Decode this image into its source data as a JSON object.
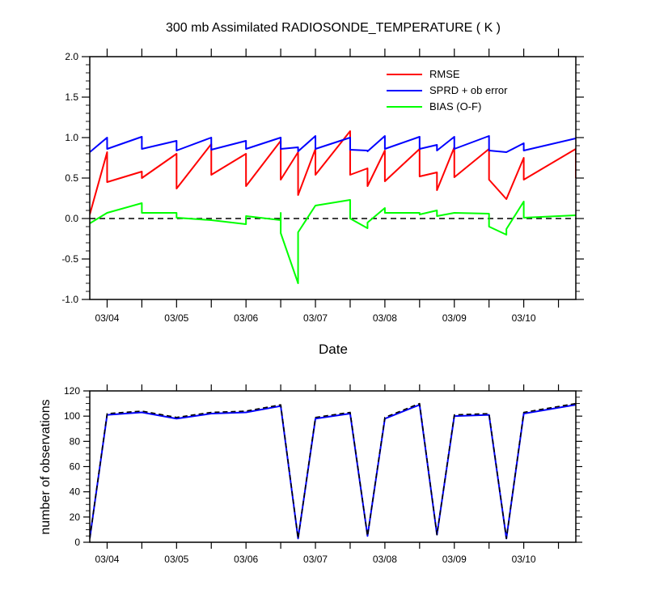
{
  "chart_data": [
    {
      "type": "line",
      "title": "300 mb Assimilated RADIOSONDE_TEMPERATURE ( K )",
      "xlabel": "Date",
      "ylabel": "",
      "xlim": [
        "03/03 18Z",
        "03/10 18Z"
      ],
      "ylim": [
        -1.0,
        2.0
      ],
      "x_tick_labels": [
        "03/04",
        "03/05",
        "03/06",
        "03/07",
        "03/08",
        "03/09",
        "03/10"
      ],
      "y_tick_labels": [
        "-1.0",
        "-0.5",
        "0.0",
        "0.5",
        "1.0",
        "1.5",
        "2.0"
      ],
      "y_ticks": [
        -1.0,
        -0.5,
        0.0,
        0.5,
        1.0,
        1.5,
        2.0
      ],
      "legend_position": "top-right",
      "reference_line": {
        "y": 0.0,
        "style": "dashed"
      },
      "series": [
        {
          "name": "RMSE",
          "color": "#ff0000",
          "points": [
            [
              "03/03 18Z",
              0.05
            ],
            [
              "03/04 00Z",
              0.82
            ],
            [
              "03/04 00Z",
              0.45
            ],
            [
              "03/04 12Z",
              0.58
            ],
            [
              "03/04 12Z",
              0.5
            ],
            [
              "03/05 00Z",
              0.8
            ],
            [
              "03/05 00Z",
              0.37
            ],
            [
              "03/05 12Z",
              0.92
            ],
            [
              "03/05 12Z",
              0.54
            ],
            [
              "03/06 00Z",
              0.8
            ],
            [
              "03/06 00Z",
              0.4
            ],
            [
              "03/06 12Z",
              0.96
            ],
            [
              "03/06 12Z",
              0.48
            ],
            [
              "03/06 18Z",
              0.82
            ],
            [
              "03/06 18Z",
              0.29
            ],
            [
              "03/07 00Z",
              0.86
            ],
            [
              "03/07 00Z",
              0.54
            ],
            [
              "03/07 12Z",
              1.08
            ],
            [
              "03/07 12Z",
              0.54
            ],
            [
              "03/07 18Z",
              0.62
            ],
            [
              "03/07 18Z",
              0.4
            ],
            [
              "03/08 00Z",
              0.84
            ],
            [
              "03/08 00Z",
              0.46
            ],
            [
              "03/08 12Z",
              0.86
            ],
            [
              "03/08 12Z",
              0.52
            ],
            [
              "03/08 18Z",
              0.57
            ],
            [
              "03/08 18Z",
              0.35
            ],
            [
              "03/09 00Z",
              0.88
            ],
            [
              "03/09 00Z",
              0.51
            ],
            [
              "03/09 12Z",
              0.86
            ],
            [
              "03/09 12Z",
              0.48
            ],
            [
              "03/09 18Z",
              0.24
            ],
            [
              "03/10 00Z",
              0.75
            ],
            [
              "03/10 00Z",
              0.48
            ],
            [
              "03/10 18Z",
              0.86
            ],
            [
              "03/10 18Z",
              0.5
            ]
          ]
        },
        {
          "name": "SPRD + ob error",
          "color": "#0000ff",
          "points": [
            [
              "03/03 18Z",
              0.82
            ],
            [
              "03/04 00Z",
              1.0
            ],
            [
              "03/04 00Z",
              0.86
            ],
            [
              "03/04 12Z",
              1.01
            ],
            [
              "03/04 12Z",
              0.86
            ],
            [
              "03/05 00Z",
              0.96
            ],
            [
              "03/05 00Z",
              0.84
            ],
            [
              "03/05 12Z",
              1.0
            ],
            [
              "03/05 12Z",
              0.85
            ],
            [
              "03/06 00Z",
              0.96
            ],
            [
              "03/06 00Z",
              0.86
            ],
            [
              "03/06 12Z",
              1.0
            ],
            [
              "03/06 12Z",
              0.86
            ],
            [
              "03/06 18Z",
              0.88
            ],
            [
              "03/06 18Z",
              0.83
            ],
            [
              "03/07 00Z",
              1.02
            ],
            [
              "03/07 00Z",
              0.86
            ],
            [
              "03/07 12Z",
              1.0
            ],
            [
              "03/07 12Z",
              0.85
            ],
            [
              "03/07 18Z",
              0.84
            ],
            [
              "03/07 18Z",
              0.83
            ],
            [
              "03/08 00Z",
              1.02
            ],
            [
              "03/08 00Z",
              0.86
            ],
            [
              "03/08 12Z",
              1.01
            ],
            [
              "03/08 12Z",
              0.86
            ],
            [
              "03/08 18Z",
              0.91
            ],
            [
              "03/08 18Z",
              0.84
            ],
            [
              "03/09 00Z",
              1.01
            ],
            [
              "03/09 00Z",
              0.86
            ],
            [
              "03/09 12Z",
              1.02
            ],
            [
              "03/09 12Z",
              0.84
            ],
            [
              "03/09 18Z",
              0.82
            ],
            [
              "03/10 00Z",
              0.93
            ],
            [
              "03/10 00Z",
              0.84
            ],
            [
              "03/10 18Z",
              0.99
            ]
          ]
        },
        {
          "name": "BIAS (O-F)",
          "color": "#00ff00",
          "points": [
            [
              "03/03 18Z",
              -0.06
            ],
            [
              "03/04 00Z",
              0.07
            ],
            [
              "03/04 12Z",
              0.19
            ],
            [
              "03/04 12Z",
              0.07
            ],
            [
              "03/05 00Z",
              0.07
            ],
            [
              "03/05 00Z",
              0.01
            ],
            [
              "03/05 12Z",
              -0.02
            ],
            [
              "03/06 00Z",
              -0.07
            ],
            [
              "03/06 00Z",
              0.03
            ],
            [
              "03/06 12Z",
              -0.02
            ],
            [
              "03/06 12Z",
              0.07
            ],
            [
              "03/06 12Z",
              -0.18
            ],
            [
              "03/06 18Z",
              -0.8
            ],
            [
              "03/06 18Z",
              -0.17
            ],
            [
              "03/07 00Z",
              0.16
            ],
            [
              "03/07 12Z",
              0.23
            ],
            [
              "03/07 12Z",
              0.0
            ],
            [
              "03/07 18Z",
              -0.12
            ],
            [
              "03/07 18Z",
              -0.05
            ],
            [
              "03/08 00Z",
              0.13
            ],
            [
              "03/08 00Z",
              0.07
            ],
            [
              "03/08 12Z",
              0.07
            ],
            [
              "03/08 12Z",
              0.05
            ],
            [
              "03/08 18Z",
              0.1
            ],
            [
              "03/08 18Z",
              0.03
            ],
            [
              "03/09 00Z",
              0.07
            ],
            [
              "03/09 12Z",
              0.06
            ],
            [
              "03/09 12Z",
              -0.1
            ],
            [
              "03/09 18Z",
              -0.2
            ],
            [
              "03/09 18Z",
              -0.13
            ],
            [
              "03/10 00Z",
              0.21
            ],
            [
              "03/10 00Z",
              0.01
            ],
            [
              "03/10 18Z",
              0.04
            ]
          ]
        }
      ]
    },
    {
      "type": "line",
      "title": "",
      "xlabel": "",
      "ylabel": "number of observations",
      "xlim": [
        "03/03 18Z",
        "03/10 18Z"
      ],
      "ylim": [
        0,
        120
      ],
      "x_tick_labels": [
        "03/04",
        "03/05",
        "03/06",
        "03/07",
        "03/08",
        "03/09",
        "03/10"
      ],
      "y_tick_labels": [
        "0",
        "20",
        "40",
        "60",
        "80",
        "100",
        "120"
      ],
      "y_ticks": [
        0,
        20,
        40,
        60,
        80,
        100,
        120
      ],
      "series": [
        {
          "color": "#0000ff",
          "style": "solid",
          "points": [
            [
              "03/03 18Z",
              3
            ],
            [
              "03/04 00Z",
              101
            ],
            [
              "03/04 12Z",
              103
            ],
            [
              "03/05 00Z",
              98
            ],
            [
              "03/05 12Z",
              102
            ],
            [
              "03/06 00Z",
              103
            ],
            [
              "03/06 12Z",
              108
            ],
            [
              "03/06 18Z",
              3
            ],
            [
              "03/07 00Z",
              98
            ],
            [
              "03/07 12Z",
              102
            ],
            [
              "03/07 18Z",
              5
            ],
            [
              "03/08 00Z",
              98
            ],
            [
              "03/08 12Z",
              109
            ],
            [
              "03/08 18Z",
              6
            ],
            [
              "03/09 00Z",
              100
            ],
            [
              "03/09 12Z",
              101
            ],
            [
              "03/09 18Z",
              3
            ],
            [
              "03/10 00Z",
              102
            ],
            [
              "03/10 18Z",
              109
            ]
          ]
        },
        {
          "color": "#000000",
          "style": "dashed",
          "points": [
            [
              "03/03 18Z",
              3
            ],
            [
              "03/04 00Z",
              102
            ],
            [
              "03/04 12Z",
              104
            ],
            [
              "03/05 00Z",
              99
            ],
            [
              "03/05 12Z",
              103
            ],
            [
              "03/06 00Z",
              104
            ],
            [
              "03/06 12Z",
              109
            ],
            [
              "03/06 18Z",
              3
            ],
            [
              "03/07 00Z",
              99
            ],
            [
              "03/07 12Z",
              103
            ],
            [
              "03/07 18Z",
              5
            ],
            [
              "03/08 00Z",
              99
            ],
            [
              "03/08 12Z",
              110
            ],
            [
              "03/08 18Z",
              6
            ],
            [
              "03/09 00Z",
              101
            ],
            [
              "03/09 12Z",
              102
            ],
            [
              "03/09 18Z",
              3
            ],
            [
              "03/10 00Z",
              103
            ],
            [
              "03/10 18Z",
              110
            ]
          ]
        }
      ]
    }
  ]
}
